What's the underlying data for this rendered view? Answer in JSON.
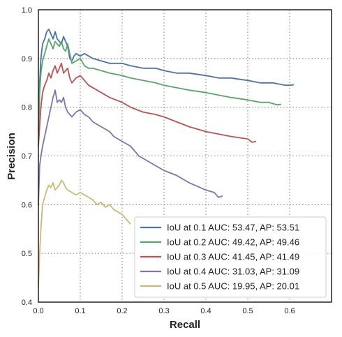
{
  "chart_data": {
    "type": "line",
    "title": "",
    "xlabel": "Recall",
    "ylabel": "Precision",
    "xlim": [
      0.0,
      0.7
    ],
    "ylim": [
      0.4,
      1.0
    ],
    "xticks": [
      "0.0",
      "0.1",
      "0.2",
      "0.3",
      "0.4",
      "0.5",
      "0.6"
    ],
    "yticks": [
      "0.4",
      "0.5",
      "0.6",
      "0.7",
      "0.8",
      "0.9",
      "1.0"
    ],
    "grid": true,
    "legend_position": "lower-right",
    "series": [
      {
        "name": "IoU at 0.1 AUC: 53.47, AP: 53.51",
        "color": "#4c72b0",
        "x": [
          0.0,
          0.003,
          0.006,
          0.01,
          0.015,
          0.02,
          0.025,
          0.03,
          0.035,
          0.04,
          0.045,
          0.05,
          0.055,
          0.06,
          0.065,
          0.07,
          0.075,
          0.08,
          0.085,
          0.09,
          0.1,
          0.11,
          0.12,
          0.13,
          0.15,
          0.17,
          0.2,
          0.22,
          0.25,
          0.28,
          0.3,
          0.33,
          0.36,
          0.4,
          0.43,
          0.46,
          0.5,
          0.53,
          0.56,
          0.59,
          0.6,
          0.61
        ],
        "y": [
          0.75,
          0.85,
          0.9,
          0.93,
          0.94,
          0.955,
          0.96,
          0.95,
          0.94,
          0.955,
          0.94,
          0.935,
          0.93,
          0.945,
          0.935,
          0.925,
          0.9,
          0.895,
          0.905,
          0.91,
          0.905,
          0.91,
          0.905,
          0.9,
          0.895,
          0.89,
          0.89,
          0.885,
          0.88,
          0.88,
          0.875,
          0.87,
          0.87,
          0.865,
          0.86,
          0.86,
          0.855,
          0.85,
          0.85,
          0.845,
          0.845,
          0.846
        ]
      },
      {
        "name": "IoU at 0.2 AUC: 49.42, AP: 49.46",
        "color": "#55a868",
        "x": [
          0.0,
          0.003,
          0.006,
          0.01,
          0.015,
          0.02,
          0.025,
          0.03,
          0.035,
          0.04,
          0.045,
          0.05,
          0.055,
          0.06,
          0.065,
          0.07,
          0.075,
          0.08,
          0.09,
          0.1,
          0.11,
          0.12,
          0.13,
          0.15,
          0.17,
          0.2,
          0.22,
          0.25,
          0.28,
          0.3,
          0.33,
          0.36,
          0.4,
          0.43,
          0.46,
          0.5,
          0.53,
          0.55,
          0.57,
          0.58
        ],
        "y": [
          0.72,
          0.83,
          0.87,
          0.895,
          0.91,
          0.925,
          0.94,
          0.93,
          0.92,
          0.935,
          0.93,
          0.925,
          0.935,
          0.92,
          0.915,
          0.93,
          0.91,
          0.89,
          0.895,
          0.9,
          0.885,
          0.88,
          0.88,
          0.875,
          0.87,
          0.865,
          0.86,
          0.855,
          0.85,
          0.845,
          0.84,
          0.835,
          0.83,
          0.825,
          0.82,
          0.815,
          0.81,
          0.81,
          0.805,
          0.806
        ]
      },
      {
        "name": "IoU at 0.3 AUC: 41.45, AP: 41.49",
        "color": "#c44e52",
        "x": [
          0.0,
          0.003,
          0.006,
          0.01,
          0.015,
          0.02,
          0.025,
          0.03,
          0.035,
          0.04,
          0.045,
          0.05,
          0.055,
          0.06,
          0.065,
          0.07,
          0.075,
          0.08,
          0.09,
          0.1,
          0.11,
          0.12,
          0.13,
          0.15,
          0.17,
          0.2,
          0.22,
          0.25,
          0.28,
          0.3,
          0.33,
          0.36,
          0.4,
          0.43,
          0.46,
          0.5,
          0.51,
          0.52
        ],
        "y": [
          0.72,
          0.76,
          0.8,
          0.83,
          0.845,
          0.855,
          0.87,
          0.86,
          0.875,
          0.885,
          0.87,
          0.88,
          0.89,
          0.87,
          0.875,
          0.88,
          0.86,
          0.85,
          0.86,
          0.865,
          0.855,
          0.845,
          0.84,
          0.83,
          0.82,
          0.81,
          0.8,
          0.79,
          0.785,
          0.78,
          0.77,
          0.76,
          0.75,
          0.745,
          0.74,
          0.735,
          0.728,
          0.73
        ]
      },
      {
        "name": "IoU at 0.4 AUC: 31.03, AP: 31.09",
        "color": "#8172b2",
        "x": [
          0.0,
          0.003,
          0.006,
          0.01,
          0.015,
          0.02,
          0.025,
          0.03,
          0.035,
          0.04,
          0.045,
          0.05,
          0.055,
          0.06,
          0.065,
          0.07,
          0.075,
          0.08,
          0.09,
          0.1,
          0.11,
          0.12,
          0.13,
          0.15,
          0.17,
          0.18,
          0.2,
          0.22,
          0.24,
          0.26,
          0.28,
          0.3,
          0.33,
          0.36,
          0.4,
          0.42,
          0.43,
          0.44
        ],
        "y": [
          0.6,
          0.68,
          0.7,
          0.72,
          0.74,
          0.76,
          0.78,
          0.8,
          0.82,
          0.835,
          0.81,
          0.815,
          0.81,
          0.82,
          0.8,
          0.79,
          0.785,
          0.78,
          0.79,
          0.795,
          0.785,
          0.78,
          0.77,
          0.76,
          0.75,
          0.74,
          0.73,
          0.72,
          0.7,
          0.69,
          0.68,
          0.67,
          0.66,
          0.645,
          0.63,
          0.625,
          0.615,
          0.618
        ]
      },
      {
        "name": "IoU at 0.5 AUC: 19.95, AP: 20.01",
        "color": "#ccb974",
        "x": [
          0.0,
          0.003,
          0.006,
          0.01,
          0.015,
          0.02,
          0.025,
          0.03,
          0.035,
          0.04,
          0.045,
          0.05,
          0.055,
          0.06,
          0.065,
          0.07,
          0.08,
          0.09,
          0.1,
          0.11,
          0.12,
          0.13,
          0.14,
          0.15,
          0.16,
          0.17,
          0.18,
          0.19,
          0.2,
          0.21,
          0.22
        ],
        "y": [
          0.43,
          0.5,
          0.55,
          0.6,
          0.615,
          0.63,
          0.64,
          0.635,
          0.645,
          0.63,
          0.635,
          0.64,
          0.65,
          0.645,
          0.635,
          0.63,
          0.625,
          0.62,
          0.625,
          0.62,
          0.615,
          0.61,
          0.6,
          0.605,
          0.595,
          0.6,
          0.59,
          0.585,
          0.58,
          0.57,
          0.56
        ]
      }
    ]
  }
}
